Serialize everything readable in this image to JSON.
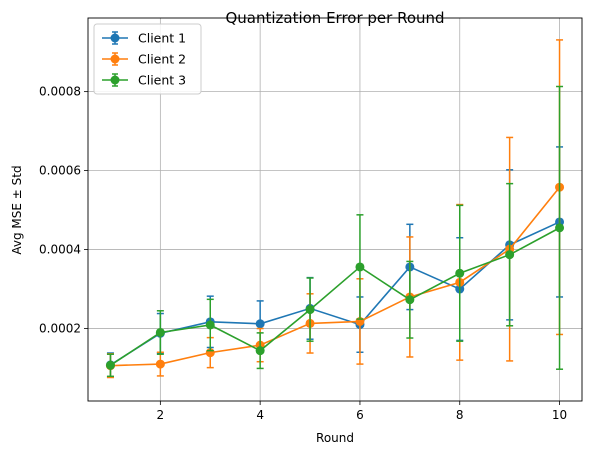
{
  "chart_data": {
    "type": "line",
    "title": "Quantization Error per Round",
    "xlabel": "Round",
    "ylabel": "Avg MSE ± Std",
    "xlim": [
      0.55,
      10.45
    ],
    "ylim": [
      1.65e-05,
      0.0009865
    ],
    "xticks": [
      2,
      4,
      6,
      8,
      10
    ],
    "xtick_labels": [
      "2",
      "4",
      "6",
      "8",
      "10"
    ],
    "yticks": [
      0.0002,
      0.0004,
      0.0006,
      0.0008
    ],
    "ytick_labels": [
      "0.0002",
      "0.0004",
      "0.0006",
      "0.0008"
    ],
    "grid": true,
    "legend_position": "top-left",
    "x": [
      1,
      2,
      3,
      4,
      5,
      6,
      7,
      8,
      9,
      10
    ],
    "series": [
      {
        "name": "Client 1",
        "color": "#1f77b4",
        "values": [
          0.000108,
          0.000188,
          0.000217,
          0.000212,
          0.000251,
          0.00021,
          0.000356,
          0.0003,
          0.000412,
          0.00047
        ],
        "errors": [
          3e-05,
          5e-05,
          6.5e-05,
          5.8e-05,
          7.8e-05,
          7e-05,
          0.000108,
          0.00013,
          0.00019,
          0.00019
        ]
      },
      {
        "name": "Client 2",
        "color": "#ff7f0e",
        "values": [
          0.000106,
          0.00011,
          0.000139,
          0.000158,
          0.000213,
          0.000218,
          0.00028,
          0.000317,
          0.000401,
          0.000558
        ],
        "errors": [
          3e-05,
          3e-05,
          3.8e-05,
          4.2e-05,
          7.5e-05,
          0.000108,
          0.000152,
          0.000197,
          0.000283,
          0.000373
        ]
      },
      {
        "name": "Client 3",
        "color": "#2ca02c",
        "values": [
          0.000107,
          0.00019,
          0.000209,
          0.000144,
          0.000248,
          0.000356,
          0.000273,
          0.00034,
          0.000387,
          0.000455
        ],
        "errors": [
          2.8e-05,
          5.5e-05,
          6.5e-05,
          4.5e-05,
          8e-05,
          0.000132,
          9.7e-05,
          0.000172,
          0.00018,
          0.000358
        ]
      }
    ]
  }
}
